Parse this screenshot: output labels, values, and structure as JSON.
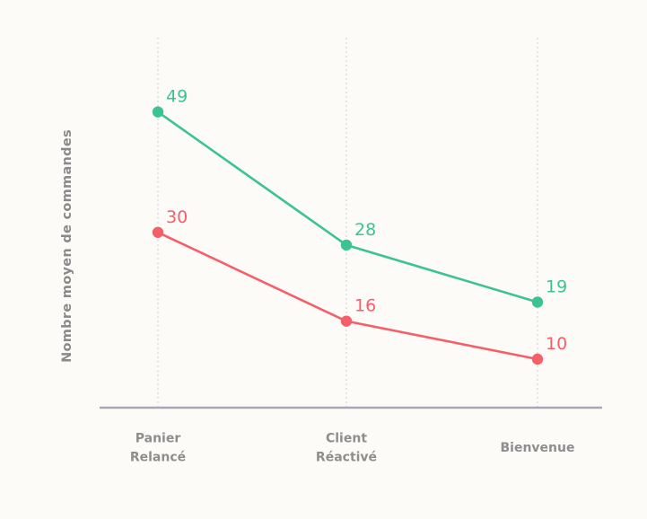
{
  "chart_data": {
    "type": "line",
    "title": "",
    "xlabel": "",
    "ylabel": "Nombre moyen de commandes",
    "categories": [
      [
        "Panier",
        "Relancé"
      ],
      [
        "Client",
        "Réactivé"
      ],
      [
        "Bienvenue"
      ]
    ],
    "series": [
      {
        "name": "",
        "color": "#3cc490",
        "values": [
          49,
          28,
          19
        ]
      },
      {
        "name": "",
        "color": "#f55f68",
        "values": [
          30,
          16,
          10
        ]
      }
    ],
    "ylim": [
      -3,
      60
    ],
    "grid": "vertical-dotted",
    "legend": "none"
  },
  "colors": {
    "axis": "#a7a7b5",
    "grid": "#dedede",
    "text": "#8a8a8a",
    "background": "#fcfbf8"
  }
}
